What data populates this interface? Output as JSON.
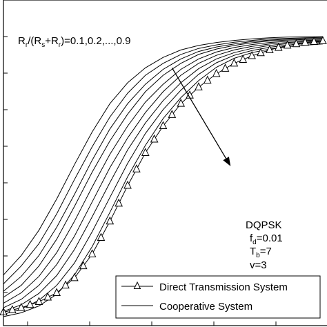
{
  "chart_data": {
    "type": "line",
    "title": "",
    "xlabel": "",
    "ylabel": "",
    "xlim": [
      0,
      18
    ],
    "ylim": [
      0,
      1
    ],
    "grid": false,
    "legend_placement": "bottom-right",
    "x": [
      0,
      1,
      2,
      3,
      4,
      5,
      6,
      7,
      8,
      9,
      10,
      11,
      12,
      13,
      14,
      15,
      16,
      17,
      18
    ],
    "series": [
      {
        "name": "Direct Transmission System",
        "marker": "triangle",
        "values": [
          0.045,
          0.06,
          0.08,
          0.11,
          0.16,
          0.24,
          0.35,
          0.47,
          0.58,
          0.67,
          0.745,
          0.8,
          0.845,
          0.88,
          0.905,
          0.925,
          0.94,
          0.95,
          0.955
        ]
      },
      {
        "name": "Cooperative System",
        "family": true,
        "annotation": "R_r/(R_s+R_r)=0.1,0.2,...,0.9",
        "curves": [
          {
            "label": "0.1",
            "values": [
              0.17,
              0.235,
              0.32,
              0.425,
              0.54,
              0.65,
              0.745,
              0.815,
              0.865,
              0.9,
              0.925,
              0.94,
              0.95,
              0.957,
              0.962,
              0.966,
              0.968,
              0.969,
              0.97
            ]
          },
          {
            "label": "0.2",
            "values": [
              0.14,
              0.2,
              0.275,
              0.375,
              0.49,
              0.6,
              0.7,
              0.78,
              0.84,
              0.88,
              0.91,
              0.93,
              0.942,
              0.951,
              0.957,
              0.962,
              0.964,
              0.966,
              0.967
            ]
          },
          {
            "label": "0.3",
            "values": [
              0.115,
              0.165,
              0.235,
              0.33,
              0.44,
              0.555,
              0.66,
              0.745,
              0.81,
              0.86,
              0.895,
              0.92,
              0.935,
              0.945,
              0.953,
              0.958,
              0.961,
              0.963,
              0.964
            ]
          },
          {
            "label": "0.4",
            "values": [
              0.095,
              0.135,
              0.2,
              0.29,
              0.4,
              0.515,
              0.62,
              0.71,
              0.785,
              0.84,
              0.88,
              0.91,
              0.928,
              0.94,
              0.949,
              0.955,
              0.958,
              0.96,
              0.961
            ]
          },
          {
            "label": "0.5",
            "values": [
              0.075,
              0.11,
              0.165,
              0.245,
              0.35,
              0.465,
              0.575,
              0.67,
              0.75,
              0.81,
              0.86,
              0.895,
              0.918,
              0.933,
              0.943,
              0.95,
              0.954,
              0.957,
              0.958
            ]
          },
          {
            "label": "0.6",
            "values": [
              0.06,
              0.088,
              0.135,
              0.205,
              0.3,
              0.415,
              0.53,
              0.63,
              0.715,
              0.785,
              0.84,
              0.88,
              0.907,
              0.925,
              0.937,
              0.945,
              0.95,
              0.953,
              0.955
            ]
          },
          {
            "label": "0.7",
            "values": [
              0.048,
              0.07,
              0.108,
              0.168,
              0.255,
              0.365,
              0.48,
              0.59,
              0.68,
              0.755,
              0.815,
              0.862,
              0.895,
              0.916,
              0.93,
              0.94,
              0.946,
              0.95,
              0.952
            ]
          },
          {
            "label": "0.8",
            "values": [
              0.038,
              0.055,
              0.085,
              0.135,
              0.21,
              0.315,
              0.43,
              0.545,
              0.645,
              0.725,
              0.79,
              0.843,
              0.882,
              0.907,
              0.923,
              0.934,
              0.941,
              0.946,
              0.949
            ]
          },
          {
            "label": "0.9",
            "values": [
              0.03,
              0.043,
              0.066,
              0.105,
              0.17,
              0.265,
              0.38,
              0.5,
              0.605,
              0.695,
              0.765,
              0.822,
              0.867,
              0.897,
              0.916,
              0.928,
              0.936,
              0.941,
              0.945
            ]
          }
        ]
      }
    ],
    "annotation": {
      "ratio_text": "R_r/(R_s+R_r)=0.1,0.2,...,0.9",
      "arrow_from": [
        9.5,
        0.865
      ],
      "arrow_to": [
        12.8,
        0.535
      ]
    },
    "params": {
      "mod": "DQPSK",
      "fd": "f_d=0.01",
      "tb": "T_b=7",
      "v": "v=3"
    },
    "legend": [
      {
        "label": "Direct Transmission System",
        "marker": "triangle"
      },
      {
        "label": "Cooperative System",
        "marker": "none"
      }
    ]
  }
}
